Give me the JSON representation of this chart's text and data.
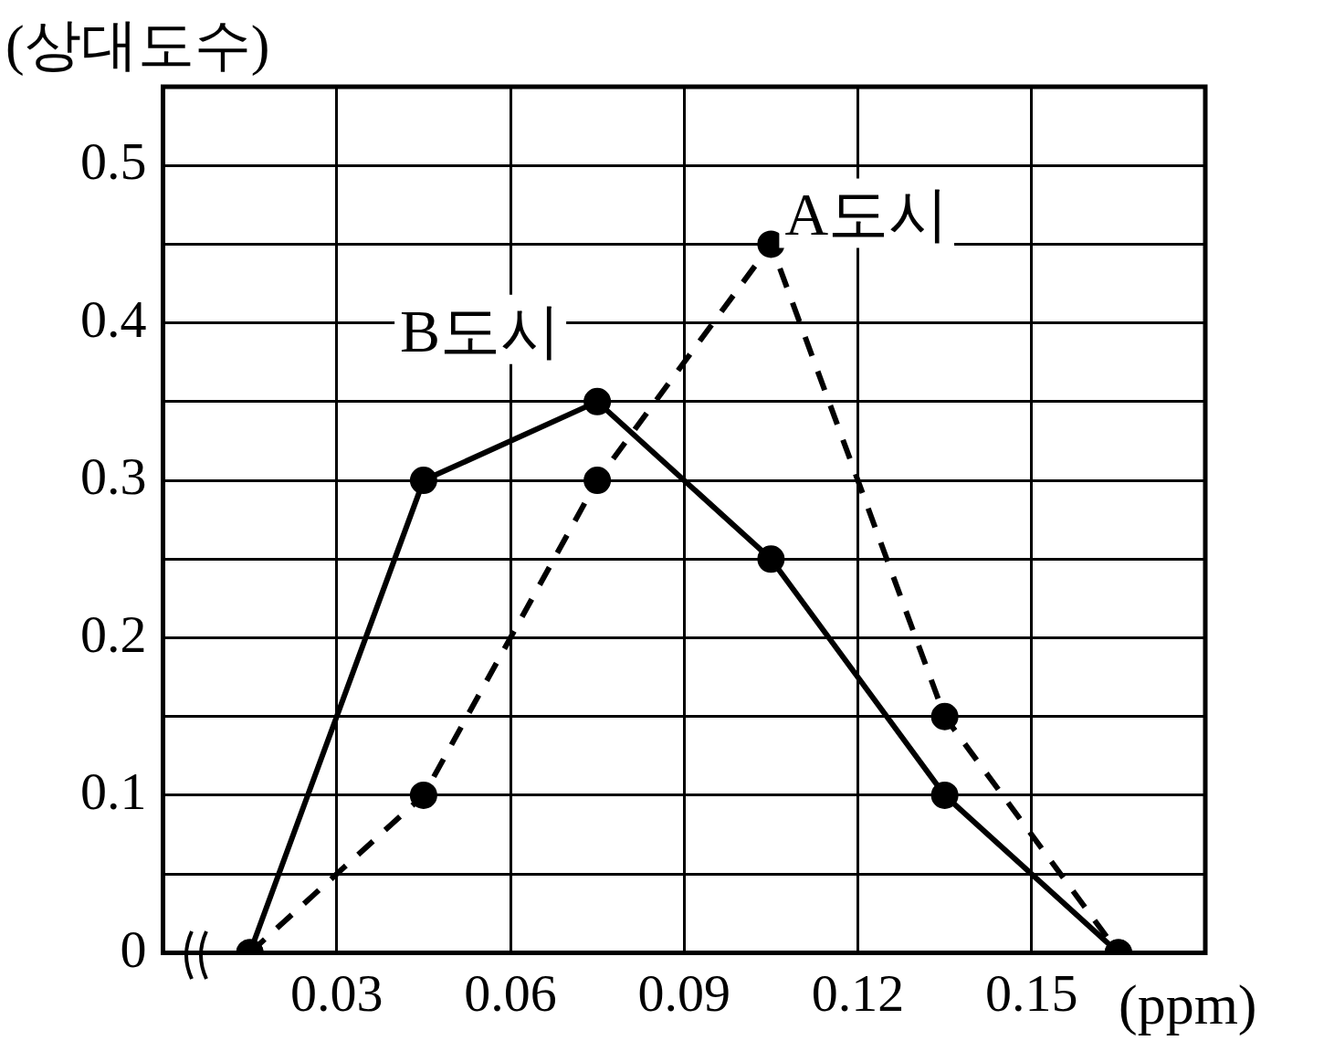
{
  "chart_data": {
    "type": "line",
    "ylabel": "(상대도수)",
    "xlabel": "(ppm)",
    "x": [
      0.015,
      0.045,
      0.075,
      0.105,
      0.135,
      0.165
    ],
    "xlim": [
      0,
      0.18
    ],
    "xticks": [
      {
        "value": 0,
        "label": null
      },
      0.03,
      0.06,
      0.09,
      0.12,
      0.15,
      {
        "value": 0.18,
        "label": null
      }
    ],
    "ylim": [
      0,
      0.55
    ],
    "yticks": [
      0,
      {
        "value": 0.05,
        "label": null
      },
      0.1,
      {
        "value": 0.15,
        "label": null
      },
      0.2,
      {
        "value": 0.25,
        "label": null
      },
      0.3,
      {
        "value": 0.35,
        "label": null
      },
      0.4,
      {
        "value": 0.45,
        "label": null
      },
      0.5,
      {
        "value": 0.55,
        "label": null
      }
    ],
    "series": [
      {
        "name": "A도시",
        "color": "#000000",
        "line_style": "dashed",
        "values": [
          0,
          0.1,
          0.3,
          0.45,
          0.15,
          0
        ]
      },
      {
        "name": "B도시",
        "color": "#000000",
        "line_style": "solid",
        "values": [
          0,
          0.3,
          0.35,
          0.25,
          0.1,
          0
        ]
      }
    ],
    "grid": true,
    "marker": "circle",
    "legend": false
  }
}
